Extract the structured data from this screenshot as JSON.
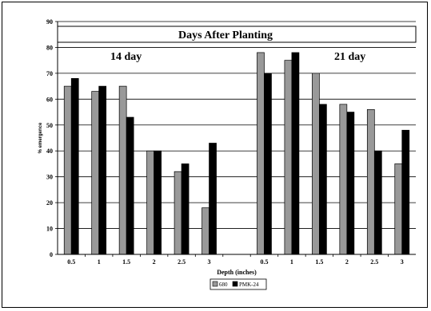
{
  "chart_data": {
    "type": "bar",
    "title": "Days After Planting",
    "xlabel": "Depth (inches)",
    "ylabel": "% emergence",
    "ylim": [
      0,
      90
    ],
    "yticks": [
      "0",
      "10",
      "20",
      "30",
      "40",
      "50",
      "60",
      "70",
      "80",
      "90"
    ],
    "grid": true,
    "legend_position": "bottom-center",
    "categories": [
      "0.5",
      "1",
      "1.5",
      "2",
      "2.5",
      "3",
      "",
      "0.5",
      "1",
      "1.5",
      "2",
      "2.5",
      "3"
    ],
    "annotations": [
      "14 day",
      "21 day"
    ],
    "series": [
      {
        "name": "680",
        "color": "#999999",
        "values": [
          65,
          63,
          65,
          40,
          32,
          18,
          null,
          78,
          75,
          70,
          58,
          56,
          35
        ]
      },
      {
        "name": "PMK-24",
        "color": "#000000",
        "values": [
          68,
          65,
          53,
          40,
          35,
          43,
          null,
          70,
          78,
          58,
          55,
          40,
          48
        ]
      }
    ]
  }
}
